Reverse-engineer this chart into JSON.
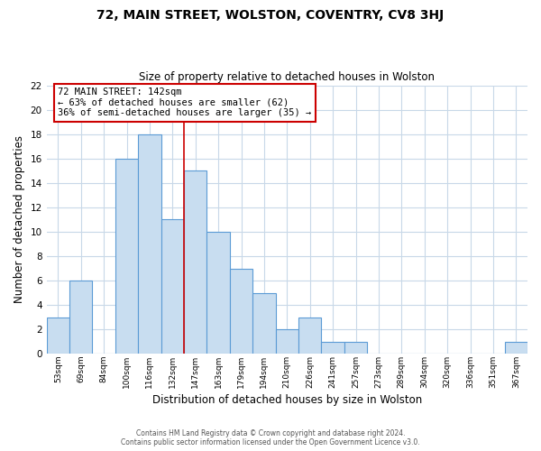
{
  "title": "72, MAIN STREET, WOLSTON, COVENTRY, CV8 3HJ",
  "subtitle": "Size of property relative to detached houses in Wolston",
  "xlabel": "Distribution of detached houses by size in Wolston",
  "ylabel": "Number of detached properties",
  "footer_line1": "Contains HM Land Registry data © Crown copyright and database right 2024.",
  "footer_line2": "Contains public sector information licensed under the Open Government Licence v3.0.",
  "bin_labels": [
    "53sqm",
    "69sqm",
    "84sqm",
    "100sqm",
    "116sqm",
    "132sqm",
    "147sqm",
    "163sqm",
    "179sqm",
    "194sqm",
    "210sqm",
    "226sqm",
    "241sqm",
    "257sqm",
    "273sqm",
    "289sqm",
    "304sqm",
    "320sqm",
    "336sqm",
    "351sqm",
    "367sqm"
  ],
  "bar_heights": [
    3,
    6,
    0,
    16,
    18,
    11,
    15,
    10,
    7,
    5,
    2,
    3,
    1,
    1,
    0,
    0,
    0,
    0,
    0,
    0,
    1
  ],
  "bar_color": "#c8ddf0",
  "bar_edge_color": "#5b9bd5",
  "annotation_title": "72 MAIN STREET: 142sqm",
  "annotation_line1": "← 63% of detached houses are smaller (62)",
  "annotation_line2": "36% of semi-detached houses are larger (35) →",
  "annotation_box_color": "#ffffff",
  "annotation_box_edge_color": "#cc0000",
  "red_line_color": "#cc0000",
  "ylim": [
    0,
    22
  ],
  "yticks": [
    0,
    2,
    4,
    6,
    8,
    10,
    12,
    14,
    16,
    18,
    20,
    22
  ],
  "bg_color": "#ffffff",
  "grid_color": "#c8d8e8",
  "num_bins": 21,
  "red_line_x": 6.5
}
